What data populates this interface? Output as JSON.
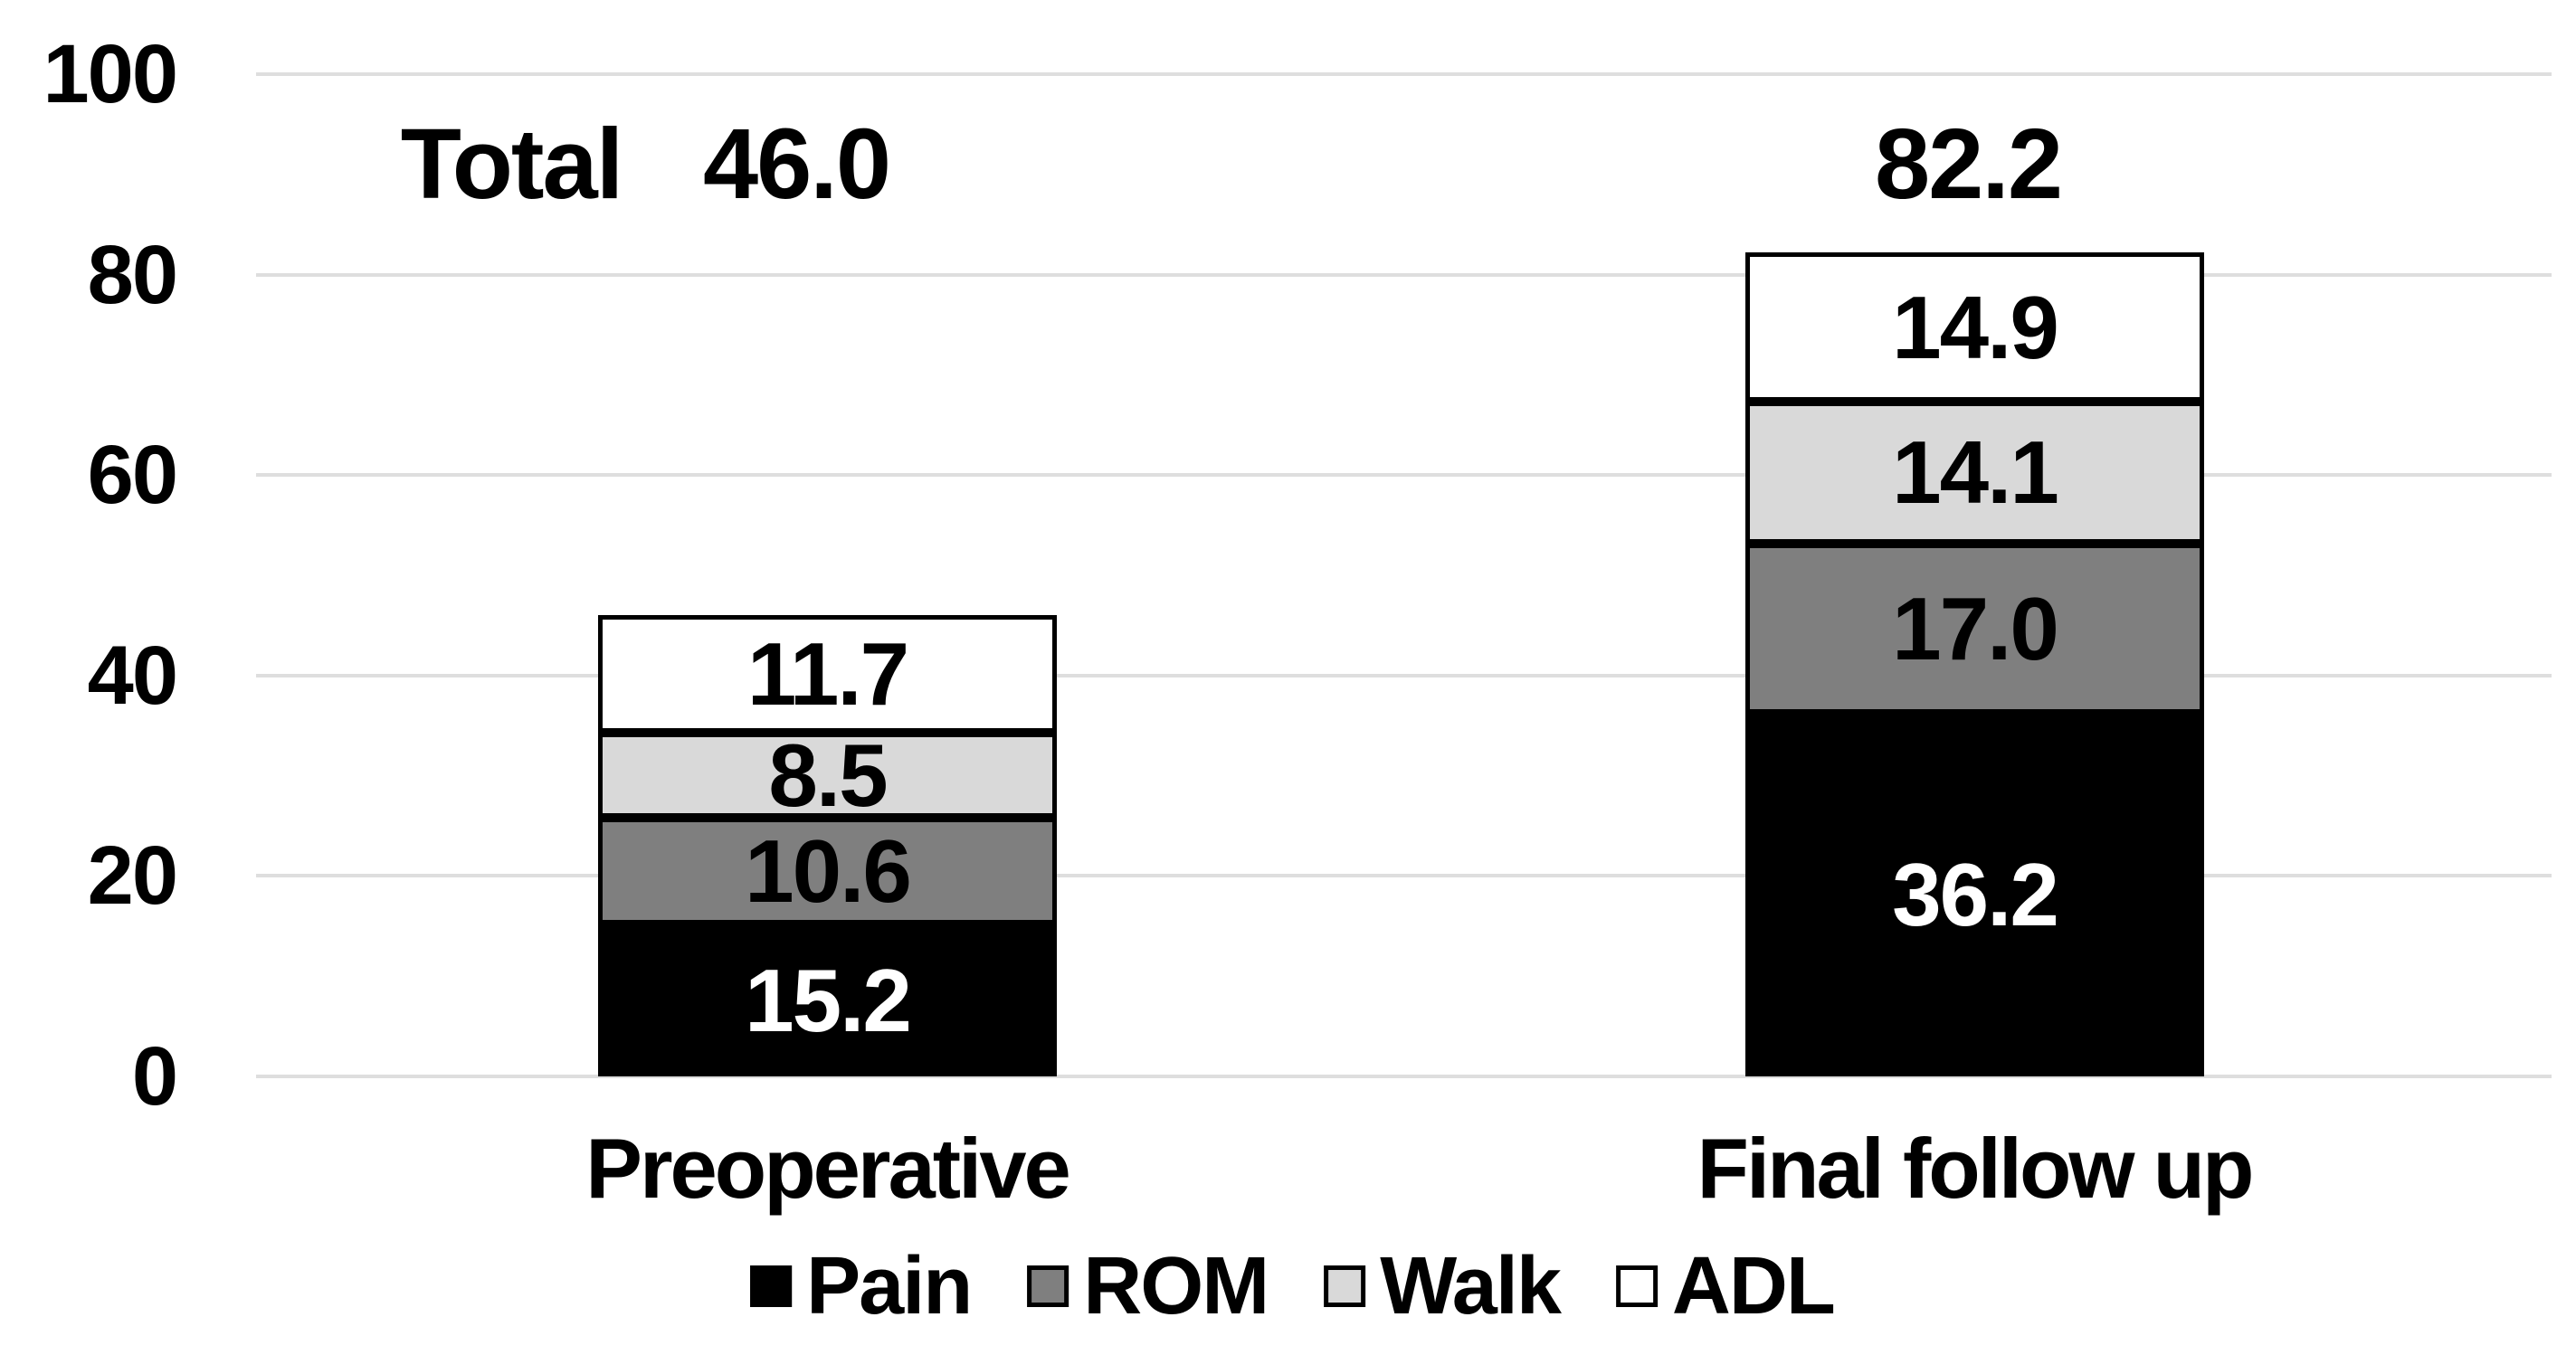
{
  "chart_data": {
    "type": "bar",
    "stacked": true,
    "categories": [
      "Preoperative",
      "Final follow up"
    ],
    "series": [
      {
        "name": "Pain",
        "color": "#000000",
        "label_color": "#ffffff",
        "values": [
          15.2,
          36.2
        ],
        "labels": [
          "15.2",
          "36.2"
        ]
      },
      {
        "name": "ROM",
        "color": "#7f7f7f",
        "label_color": "#000000",
        "values": [
          10.6,
          17.0
        ],
        "labels": [
          "10.6",
          "17.0"
        ]
      },
      {
        "name": "Walk",
        "color": "#d9d9d9",
        "label_color": "#000000",
        "values": [
          8.5,
          14.1
        ],
        "labels": [
          "8.5",
          "14.1"
        ]
      },
      {
        "name": "ADL",
        "color": "#ffffff",
        "label_color": "#000000",
        "values": [
          11.7,
          14.9
        ],
        "labels": [
          "11.7",
          "14.9"
        ]
      }
    ],
    "totals": {
      "label": "Total",
      "values": [
        "46.0",
        "82.2"
      ]
    },
    "y_ticks": [
      "0",
      "20",
      "40",
      "60",
      "80",
      "100"
    ],
    "ylim": [
      0,
      100
    ],
    "grid": true,
    "legend": [
      "Pain",
      "ROM",
      "Walk",
      "ADL"
    ],
    "legend_position": "bottom",
    "colors": {
      "gridline": "#dedede",
      "segment_border": "#000000",
      "background": "#ffffff"
    }
  }
}
